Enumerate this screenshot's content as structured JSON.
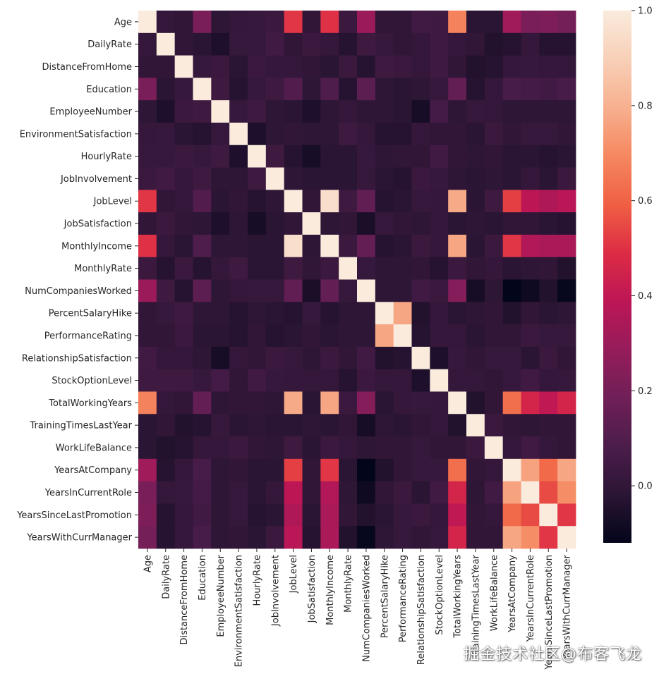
{
  "chart_data": {
    "type": "heatmap",
    "title": "",
    "xlabel": "",
    "ylabel": "",
    "labels": [
      "Age",
      "DailyRate",
      "DistanceFromHome",
      "Education",
      "EmployeeNumber",
      "EnvironmentSatisfaction",
      "HourlyRate",
      "JobInvolvement",
      "JobLevel",
      "JobSatisfaction",
      "MonthlyIncome",
      "MonthlyRate",
      "NumCompaniesWorked",
      "PercentSalaryHike",
      "PerformanceRating",
      "RelationshipSatisfaction",
      "StockOptionLevel",
      "TotalWorkingYears",
      "TrainingTimesLastYear",
      "WorkLifeBalance",
      "YearsAtCompany",
      "YearsInCurrentRole",
      "YearsSinceLastPromotion",
      "YearsWithCurrManager"
    ],
    "matrix": [
      [
        1.0,
        0.01,
        0.0,
        0.21,
        -0.01,
        0.01,
        0.02,
        0.03,
        0.51,
        0.0,
        0.5,
        0.03,
        0.3,
        0.0,
        0.0,
        0.05,
        0.04,
        0.68,
        -0.02,
        -0.02,
        0.31,
        0.21,
        0.22,
        0.2
      ],
      [
        0.01,
        1.0,
        0.0,
        -0.02,
        -0.05,
        0.02,
        0.02,
        0.05,
        0.0,
        0.03,
        0.01,
        -0.03,
        0.04,
        0.02,
        0.0,
        0.01,
        0.04,
        0.01,
        0.0,
        -0.04,
        -0.03,
        0.01,
        -0.03,
        -0.03
      ],
      [
        0.0,
        0.0,
        1.0,
        0.02,
        0.03,
        -0.02,
        0.03,
        0.01,
        0.01,
        0.0,
        -0.02,
        0.03,
        -0.03,
        0.04,
        0.03,
        0.01,
        0.04,
        0.0,
        -0.04,
        -0.03,
        0.01,
        0.02,
        0.01,
        0.01
      ],
      [
        0.21,
        -0.02,
        0.02,
        1.0,
        0.04,
        -0.03,
        0.02,
        0.04,
        0.1,
        -0.01,
        0.09,
        -0.03,
        0.13,
        -0.01,
        -0.02,
        -0.01,
        0.02,
        0.15,
        -0.03,
        0.01,
        0.07,
        0.06,
        0.05,
        0.07
      ],
      [
        -0.01,
        -0.05,
        0.03,
        0.04,
        1.0,
        0.02,
        0.04,
        -0.01,
        -0.02,
        -0.05,
        -0.01,
        0.01,
        -0.01,
        -0.01,
        -0.02,
        -0.07,
        0.06,
        -0.01,
        0.02,
        0.01,
        -0.01,
        -0.01,
        -0.01,
        -0.01
      ],
      [
        0.01,
        0.02,
        -0.02,
        -0.03,
        0.02,
        1.0,
        -0.05,
        -0.01,
        0.0,
        -0.01,
        -0.01,
        0.04,
        0.01,
        -0.03,
        -0.03,
        0.01,
        0.0,
        -0.0,
        -0.02,
        0.03,
        0.0,
        0.02,
        0.02,
        -0.0
      ],
      [
        0.02,
        0.02,
        0.03,
        0.02,
        0.04,
        -0.05,
        1.0,
        0.04,
        -0.03,
        -0.07,
        -0.02,
        -0.02,
        0.02,
        -0.01,
        -0.0,
        0.0,
        0.05,
        -0.0,
        -0.01,
        -0.0,
        -0.02,
        -0.02,
        -0.03,
        -0.02
      ],
      [
        0.03,
        0.05,
        0.01,
        0.04,
        -0.01,
        -0.01,
        0.04,
        1.0,
        -0.01,
        -0.02,
        -0.02,
        -0.02,
        0.02,
        -0.02,
        -0.03,
        0.03,
        0.02,
        -0.01,
        -0.02,
        -0.01,
        -0.02,
        0.01,
        -0.02,
        0.03
      ],
      [
        0.51,
        0.0,
        0.01,
        0.1,
        -0.02,
        0.0,
        -0.03,
        -0.01,
        1.0,
        -0.0,
        0.95,
        0.04,
        0.14,
        -0.03,
        -0.02,
        0.02,
        0.01,
        0.78,
        -0.02,
        0.04,
        0.53,
        0.39,
        0.35,
        0.38
      ],
      [
        0.0,
        0.03,
        0.0,
        -0.01,
        -0.05,
        -0.01,
        -0.07,
        -0.02,
        -0.0,
        1.0,
        -0.01,
        0.0,
        -0.06,
        0.02,
        0.0,
        -0.01,
        0.01,
        -0.02,
        -0.01,
        -0.02,
        -0.0,
        -0.0,
        -0.02,
        -0.03
      ],
      [
        0.5,
        0.01,
        -0.02,
        0.09,
        -0.01,
        -0.01,
        -0.02,
        -0.02,
        0.95,
        -0.01,
        1.0,
        0.03,
        0.15,
        -0.03,
        -0.02,
        0.03,
        0.01,
        0.77,
        -0.02,
        0.03,
        0.51,
        0.36,
        0.34,
        0.34
      ],
      [
        0.03,
        -0.03,
        0.03,
        -0.03,
        0.01,
        0.04,
        -0.02,
        -0.02,
        0.04,
        0.0,
        0.03,
        1.0,
        0.02,
        -0.01,
        -0.01,
        -0.0,
        -0.03,
        0.03,
        0.0,
        0.01,
        -0.02,
        -0.01,
        0.0,
        -0.04
      ],
      [
        0.3,
        0.04,
        -0.03,
        0.13,
        -0.01,
        0.01,
        0.02,
        0.02,
        0.14,
        -0.06,
        0.15,
        0.02,
        1.0,
        -0.01,
        -0.01,
        0.05,
        0.03,
        0.24,
        -0.07,
        -0.01,
        -0.12,
        -0.09,
        -0.04,
        -0.11
      ],
      [
        0.0,
        0.02,
        0.04,
        -0.01,
        -0.01,
        -0.03,
        -0.01,
        -0.02,
        -0.03,
        0.02,
        -0.03,
        -0.01,
        -0.01,
        1.0,
        0.77,
        -0.04,
        0.01,
        -0.02,
        -0.01,
        -0.0,
        -0.04,
        -0.0,
        -0.02,
        -0.01
      ],
      [
        0.0,
        0.0,
        0.03,
        -0.02,
        -0.02,
        -0.03,
        -0.0,
        -0.03,
        -0.02,
        0.0,
        -0.02,
        -0.01,
        -0.01,
        0.77,
        1.0,
        -0.03,
        0.01,
        0.01,
        -0.02,
        0.0,
        0.0,
        0.03,
        0.02,
        0.02
      ],
      [
        0.05,
        0.01,
        0.01,
        -0.01,
        -0.07,
        0.01,
        0.0,
        0.03,
        0.02,
        -0.01,
        0.03,
        -0.0,
        0.05,
        -0.04,
        -0.03,
        1.0,
        -0.05,
        0.02,
        0.0,
        0.02,
        0.02,
        -0.02,
        0.03,
        -0.0
      ],
      [
        0.04,
        0.04,
        0.04,
        0.02,
        0.06,
        0.0,
        0.05,
        0.02,
        0.01,
        0.01,
        0.01,
        -0.03,
        0.03,
        0.01,
        0.01,
        -0.05,
        1.0,
        0.01,
        0.01,
        0.0,
        0.02,
        0.05,
        0.01,
        0.02
      ],
      [
        0.68,
        0.01,
        0.0,
        0.15,
        -0.01,
        -0.0,
        -0.0,
        -0.01,
        0.78,
        -0.02,
        0.77,
        0.03,
        0.24,
        -0.02,
        0.01,
        0.02,
        0.01,
        1.0,
        -0.04,
        0.0,
        0.63,
        0.46,
        0.4,
        0.46
      ],
      [
        -0.02,
        0.0,
        -0.04,
        -0.03,
        0.02,
        -0.02,
        -0.01,
        -0.02,
        -0.02,
        -0.01,
        -0.02,
        0.0,
        -0.07,
        -0.01,
        -0.02,
        0.0,
        0.01,
        -0.04,
        1.0,
        0.03,
        0.0,
        -0.01,
        -0.0,
        -0.0
      ],
      [
        -0.02,
        -0.04,
        -0.03,
        0.01,
        0.01,
        0.03,
        -0.0,
        -0.01,
        0.04,
        -0.02,
        0.03,
        0.01,
        -0.01,
        -0.0,
        0.0,
        0.02,
        0.0,
        0.0,
        0.03,
        1.0,
        0.01,
        0.05,
        0.01,
        0.0
      ],
      [
        0.31,
        -0.03,
        0.01,
        0.07,
        -0.01,
        0.0,
        -0.02,
        -0.02,
        0.53,
        -0.0,
        0.51,
        -0.02,
        -0.12,
        -0.04,
        0.0,
        0.02,
        0.02,
        0.63,
        0.0,
        0.01,
        1.0,
        0.76,
        0.62,
        0.77
      ],
      [
        0.21,
        0.01,
        0.02,
        0.06,
        -0.01,
        0.02,
        -0.02,
        0.01,
        0.39,
        -0.0,
        0.36,
        -0.01,
        -0.09,
        -0.0,
        0.03,
        -0.02,
        0.05,
        0.46,
        -0.01,
        0.05,
        0.76,
        1.0,
        0.55,
        0.71
      ],
      [
        0.22,
        -0.03,
        0.01,
        0.05,
        -0.01,
        0.02,
        -0.03,
        -0.02,
        0.35,
        -0.02,
        0.34,
        0.0,
        -0.04,
        -0.02,
        0.02,
        0.03,
        0.01,
        0.4,
        -0.0,
        0.01,
        0.62,
        0.55,
        1.0,
        0.51
      ],
      [
        0.2,
        -0.03,
        0.01,
        0.07,
        -0.01,
        -0.0,
        -0.02,
        0.03,
        0.38,
        -0.03,
        0.34,
        -0.04,
        -0.11,
        -0.01,
        0.02,
        -0.0,
        0.02,
        0.46,
        -0.0,
        0.0,
        0.77,
        0.71,
        0.51,
        1.0
      ]
    ],
    "colorbar": {
      "min": -0.12,
      "max": 1.0,
      "ticks": [
        0.0,
        0.2,
        0.4,
        0.6,
        0.8,
        1.0
      ],
      "tick_labels": [
        "0.0",
        "0.2",
        "0.4",
        "0.6",
        "0.8",
        "1.0"
      ],
      "colormap": "rocket",
      "stops": [
        "#03051a",
        "#2b1534",
        "#4c1d4b",
        "#701f57",
        "#961c5b",
        "#bd1655",
        "#dd2c45",
        "#f06043",
        "#f58860",
        "#f7b08f",
        "#f8d0b8",
        "#faebdd"
      ]
    },
    "legend": "right"
  },
  "watermark": "掘金技术社区@布客飞龙"
}
